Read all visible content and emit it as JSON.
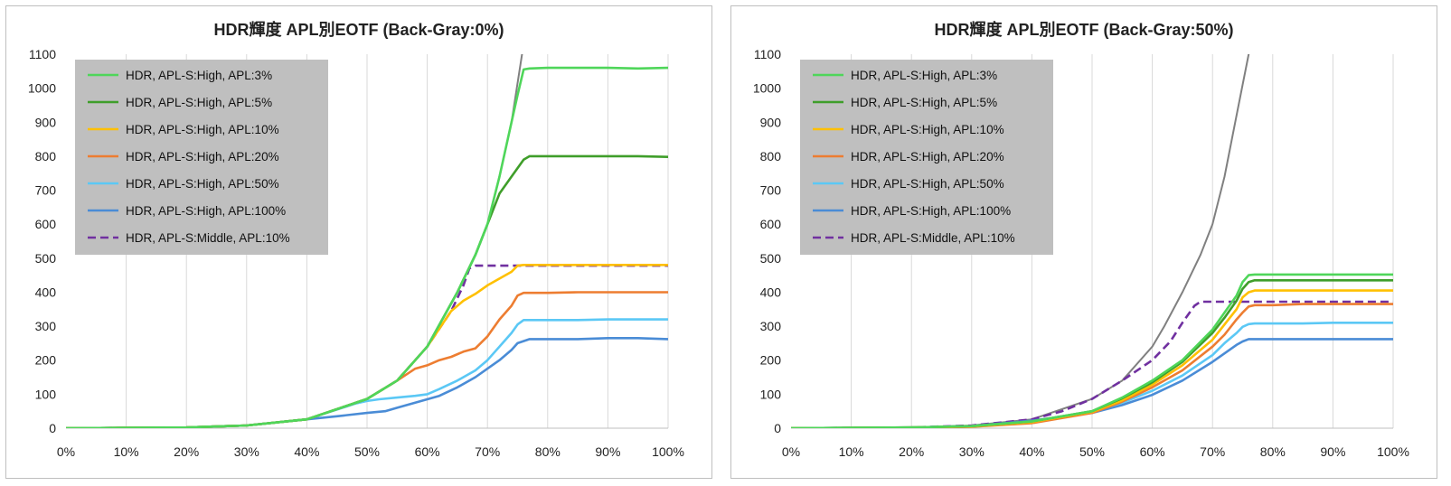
{
  "chart_data": [
    {
      "type": "line",
      "title": "HDR輝度 APL別EOTF (Back-Gray:0%)",
      "xlabel": "",
      "ylabel": "",
      "xlim": [
        0,
        100
      ],
      "ylim": [
        0,
        1100
      ],
      "x_ticks": [
        "0%",
        "10%",
        "20%",
        "30%",
        "40%",
        "50%",
        "60%",
        "70%",
        "80%",
        "90%",
        "100%"
      ],
      "y_ticks": [
        "0",
        "100",
        "200",
        "300",
        "400",
        "500",
        "600",
        "700",
        "800",
        "900",
        "1000",
        "1100"
      ],
      "grid": "vertical",
      "legend_position": "top-left",
      "reference_curve": {
        "color": "#808080",
        "x": [
          0,
          20,
          30,
          40,
          50,
          55,
          60,
          65,
          68,
          70,
          72,
          74,
          76
        ],
        "y": [
          0,
          2,
          8,
          26,
          86,
          140,
          240,
          400,
          510,
          600,
          740,
          900,
          1130
        ]
      },
      "series": [
        {
          "name": "HDR, APL-S:High, APL:3%",
          "color": "#4fd65a",
          "dash": false,
          "x": [
            0,
            20,
            30,
            40,
            50,
            55,
            60,
            65,
            68,
            70,
            72,
            74,
            75,
            76,
            77,
            80,
            85,
            90,
            95,
            100
          ],
          "y": [
            0,
            2,
            8,
            26,
            86,
            140,
            240,
            400,
            510,
            600,
            740,
            900,
            980,
            1055,
            1058,
            1060,
            1060,
            1060,
            1058,
            1060
          ]
        },
        {
          "name": "HDR, APL-S:High, APL:5%",
          "color": "#3f9e2a",
          "dash": false,
          "x": [
            0,
            20,
            30,
            40,
            50,
            55,
            60,
            65,
            68,
            70,
            72,
            74,
            76,
            77,
            80,
            85,
            90,
            95,
            100
          ],
          "y": [
            0,
            2,
            8,
            26,
            86,
            140,
            240,
            400,
            510,
            600,
            690,
            740,
            790,
            800,
            800,
            800,
            800,
            800,
            798
          ]
        },
        {
          "name": "HDR, APL-S:High, APL:10%",
          "color": "#ffc000",
          "dash": false,
          "x": [
            0,
            20,
            30,
            40,
            50,
            55,
            60,
            64,
            66,
            68,
            70,
            72,
            74,
            75,
            76,
            80,
            85,
            90,
            95,
            100
          ],
          "y": [
            0,
            2,
            8,
            26,
            86,
            140,
            240,
            345,
            375,
            395,
            420,
            440,
            460,
            478,
            480,
            480,
            480,
            480,
            480,
            480
          ]
        },
        {
          "name": "HDR, APL-S:High, APL:20%",
          "color": "#ed7d31",
          "dash": false,
          "x": [
            0,
            20,
            30,
            40,
            50,
            55,
            58,
            60,
            62,
            64,
            66,
            68,
            70,
            72,
            74,
            75,
            76,
            80,
            85,
            90,
            95,
            100
          ],
          "y": [
            0,
            2,
            8,
            26,
            86,
            140,
            175,
            185,
            200,
            210,
            225,
            235,
            270,
            320,
            360,
            390,
            398,
            398,
            400,
            400,
            400,
            400
          ]
        },
        {
          "name": "HDR, APL-S:High, APL:50%",
          "color": "#5bc8f5",
          "dash": false,
          "x": [
            0,
            20,
            30,
            40,
            48,
            50,
            52,
            55,
            58,
            60,
            62,
            65,
            68,
            70,
            72,
            74,
            75,
            76,
            80,
            85,
            90,
            95,
            100
          ],
          "y": [
            0,
            2,
            8,
            26,
            72,
            80,
            85,
            90,
            95,
            100,
            115,
            140,
            170,
            200,
            240,
            280,
            305,
            318,
            318,
            318,
            320,
            320,
            320
          ]
        },
        {
          "name": "HDR, APL-S:High, APL:100%",
          "color": "#4a8cd6",
          "dash": false,
          "x": [
            0,
            20,
            30,
            40,
            45,
            50,
            53,
            55,
            58,
            60,
            62,
            65,
            68,
            70,
            72,
            74,
            75,
            77,
            80,
            85,
            90,
            95,
            100
          ],
          "y": [
            0,
            2,
            8,
            26,
            35,
            45,
            50,
            60,
            75,
            85,
            95,
            120,
            150,
            175,
            200,
            230,
            250,
            262,
            262,
            262,
            265,
            265,
            262
          ]
        },
        {
          "name": "HDR, APL-S:Middle, APL:10%",
          "color": "#7030a0",
          "dash": true,
          "x": [
            0,
            20,
            30,
            40,
            50,
            55,
            60,
            64,
            66,
            67,
            68,
            70,
            75,
            80,
            85,
            90,
            95,
            100
          ],
          "y": [
            0,
            2,
            8,
            26,
            86,
            140,
            240,
            345,
            420,
            470,
            478,
            478,
            478,
            478,
            478,
            478,
            478,
            478
          ]
        }
      ]
    },
    {
      "type": "line",
      "title": "HDR輝度 APL別EOTF (Back-Gray:50%)",
      "xlabel": "",
      "ylabel": "",
      "xlim": [
        0,
        100
      ],
      "ylim": [
        0,
        1100
      ],
      "x_ticks": [
        "0%",
        "10%",
        "20%",
        "30%",
        "40%",
        "50%",
        "60%",
        "70%",
        "80%",
        "90%",
        "100%"
      ],
      "y_ticks": [
        "0",
        "100",
        "200",
        "300",
        "400",
        "500",
        "600",
        "700",
        "800",
        "900",
        "1000",
        "1100"
      ],
      "grid": "vertical",
      "legend_position": "top-left",
      "reference_curve": {
        "color": "#808080",
        "x": [
          0,
          20,
          30,
          40,
          50,
          55,
          60,
          62,
          65,
          68,
          70,
          72,
          74,
          76,
          77
        ],
        "y": [
          0,
          2,
          8,
          26,
          86,
          140,
          240,
          300,
          400,
          510,
          600,
          740,
          920,
          1100,
          1150
        ]
      },
      "series": [
        {
          "name": "HDR, APL-S:High, APL:3%",
          "color": "#4fd65a",
          "dash": false,
          "x": [
            0,
            20,
            30,
            40,
            50,
            55,
            60,
            65,
            70,
            72,
            74,
            75,
            76,
            77,
            80,
            85,
            90,
            95,
            100
          ],
          "y": [
            0,
            2,
            6,
            20,
            50,
            90,
            140,
            200,
            290,
            340,
            390,
            430,
            450,
            452,
            452,
            452,
            452,
            452,
            452
          ]
        },
        {
          "name": "HDR, APL-S:High, APL:5%",
          "color": "#3f9e2a",
          "dash": false,
          "x": [
            0,
            20,
            30,
            40,
            50,
            55,
            60,
            65,
            70,
            72,
            74,
            75,
            76,
            77,
            80,
            85,
            90,
            95,
            100
          ],
          "y": [
            0,
            2,
            6,
            20,
            50,
            88,
            135,
            195,
            280,
            325,
            375,
            410,
            430,
            435,
            435,
            435,
            435,
            435,
            435
          ]
        },
        {
          "name": "HDR, APL-S:High, APL:10%",
          "color": "#ffc000",
          "dash": false,
          "x": [
            0,
            20,
            30,
            40,
            50,
            55,
            60,
            65,
            70,
            72,
            74,
            75,
            76,
            77,
            80,
            85,
            90,
            95,
            100
          ],
          "y": [
            0,
            2,
            5,
            18,
            48,
            82,
            128,
            185,
            260,
            305,
            350,
            385,
            400,
            405,
            405,
            405,
            405,
            405,
            405
          ]
        },
        {
          "name": "HDR, APL-S:High, APL:20%",
          "color": "#ed7d31",
          "dash": false,
          "x": [
            0,
            20,
            30,
            40,
            50,
            55,
            60,
            65,
            70,
            72,
            74,
            75,
            76,
            77,
            80,
            85,
            90,
            95,
            100
          ],
          "y": [
            0,
            1,
            4,
            15,
            45,
            78,
            120,
            170,
            240,
            275,
            320,
            340,
            358,
            362,
            362,
            365,
            365,
            365,
            365
          ]
        },
        {
          "name": "HDR, APL-S:High, APL:50%",
          "color": "#5bc8f5",
          "dash": false,
          "x": [
            0,
            20,
            30,
            40,
            50,
            55,
            60,
            65,
            70,
            72,
            74,
            75,
            76,
            77,
            80,
            85,
            90,
            95,
            100
          ],
          "y": [
            0,
            2,
            6,
            20,
            48,
            75,
            110,
            155,
            215,
            250,
            280,
            298,
            306,
            308,
            308,
            308,
            310,
            310,
            310
          ]
        },
        {
          "name": "HDR, APL-S:High, APL:100%",
          "color": "#4a8cd6",
          "dash": false,
          "x": [
            0,
            20,
            30,
            40,
            50,
            55,
            60,
            65,
            70,
            72,
            74,
            75,
            76,
            77,
            80,
            85,
            90,
            95,
            100
          ],
          "y": [
            0,
            2,
            6,
            22,
            45,
            68,
            98,
            140,
            195,
            220,
            245,
            255,
            262,
            262,
            262,
            262,
            262,
            262,
            262
          ]
        },
        {
          "name": "HDR, APL-S:Middle, APL:10%",
          "color": "#7030a0",
          "dash": true,
          "x": [
            0,
            20,
            30,
            40,
            45,
            50,
            55,
            60,
            63,
            65,
            67,
            68,
            70,
            75,
            80,
            85,
            90,
            95,
            100
          ],
          "y": [
            0,
            2,
            8,
            26,
            50,
            86,
            140,
            200,
            255,
            310,
            360,
            372,
            372,
            372,
            372,
            372,
            372,
            372,
            372
          ]
        }
      ]
    }
  ]
}
